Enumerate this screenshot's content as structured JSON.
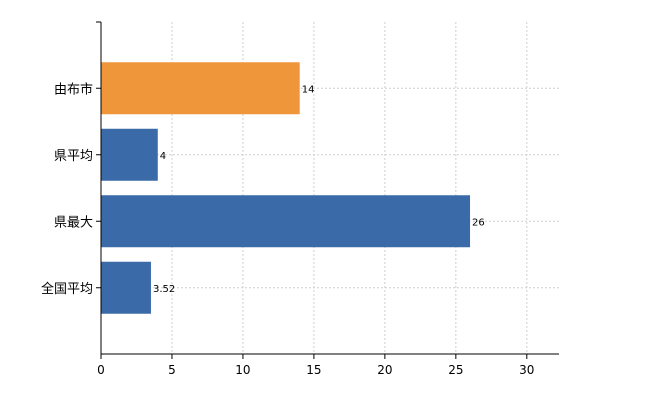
{
  "chart_data": {
    "type": "bar",
    "orientation": "horizontal",
    "categories": [
      "由布市",
      "県平均",
      "県最大",
      "全国平均"
    ],
    "values": [
      14,
      4,
      26,
      3.52
    ],
    "value_labels": [
      "14",
      "4",
      "26",
      "3.52"
    ],
    "colors": [
      "#F0963A",
      "#3A6BA8",
      "#3A6BA8",
      "#3A6BA8"
    ],
    "xlim": [
      0,
      31
    ],
    "xticks": [
      0,
      5,
      10,
      15,
      20,
      25,
      30
    ],
    "xtick_labels": [
      "0",
      "5",
      "10",
      "15",
      "20",
      "25",
      "30"
    ],
    "grid": true,
    "title": "",
    "xlabel": "",
    "ylabel": ""
  }
}
